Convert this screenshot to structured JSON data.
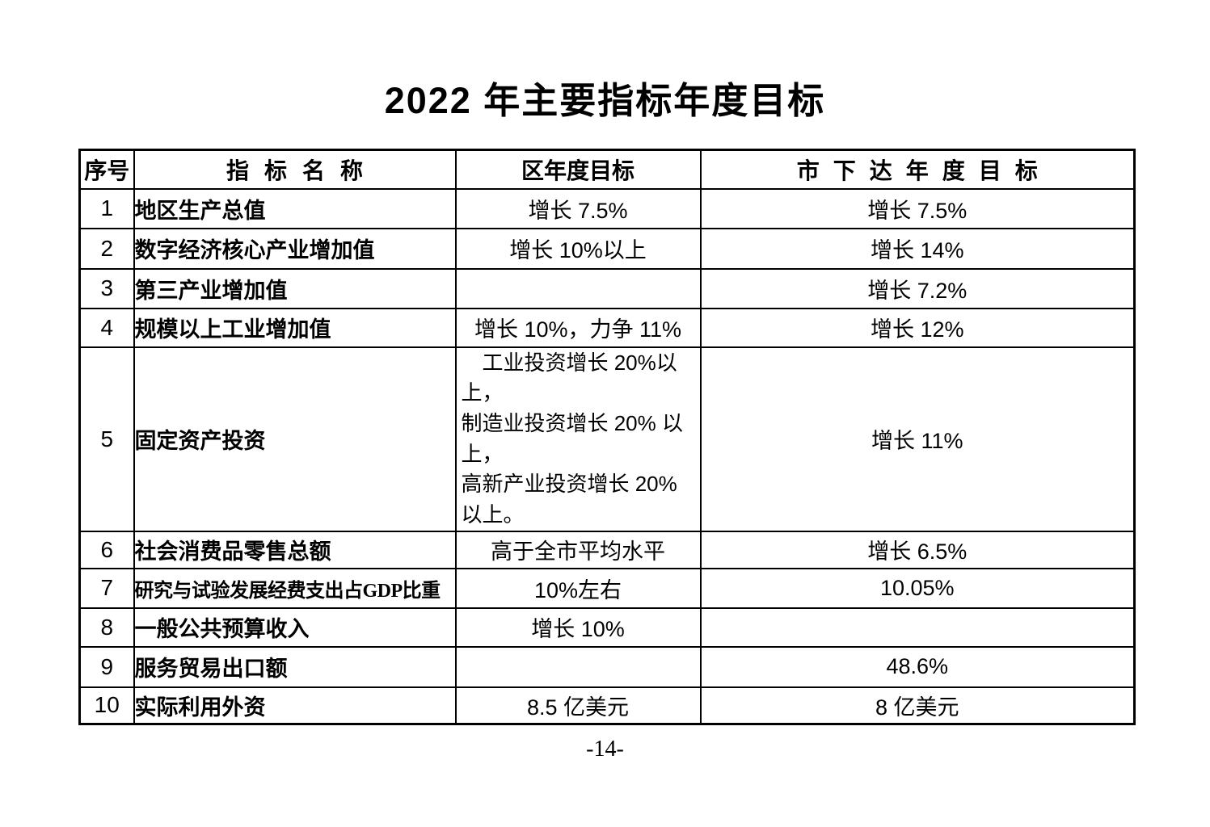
{
  "page": {
    "title": "2022 年主要指标年度目标",
    "footer_page_number": "-14-",
    "text_color": "#000000",
    "background_color": "#ffffff",
    "border_color": "#000000"
  },
  "table": {
    "headers": {
      "no": "序号",
      "name": "指 标 名 称",
      "district_target": "区年度目标",
      "city_target": "市 下 达 年 度 目 标"
    },
    "rows": [
      {
        "no": "1",
        "name": "地区生产总值",
        "district_target": "增长 7.5%",
        "city_target": "增长 7.5%"
      },
      {
        "no": "2",
        "name": "数字经济核心产业增加值",
        "district_target": "增长 10%以上",
        "city_target": "增长 14%"
      },
      {
        "no": "3",
        "name": "第三产业增加值",
        "district_target": "",
        "city_target": "增长 7.2%"
      },
      {
        "no": "4",
        "name": "规模以上工业增加值",
        "district_target": "增长 10%，力争 11%",
        "city_target": "增长 12%"
      },
      {
        "no": "5",
        "name": "固定资产投资",
        "district_target": "　工业投资增长 20%以上，\n制造业投资增长 20% 以上，\n高新产业投资增长 20%以上。",
        "city_target": "增长 11%"
      },
      {
        "no": "6",
        "name": "社会消费品零售总额",
        "district_target": "高于全市平均水平",
        "city_target": "增长 6.5%"
      },
      {
        "no": "7",
        "name": "研究与试验发展经费支出占GDP比重",
        "district_target": "10%左右",
        "city_target": "10.05%"
      },
      {
        "no": "8",
        "name": "一般公共预算收入",
        "district_target": "增长 10%",
        "city_target": ""
      },
      {
        "no": "9",
        "name": "服务贸易出口额",
        "district_target": "",
        "city_target": "48.6%"
      },
      {
        "no": "10",
        "name": "实际利用外资",
        "district_target": "8.5 亿美元",
        "city_target": "8 亿美元"
      }
    ]
  }
}
